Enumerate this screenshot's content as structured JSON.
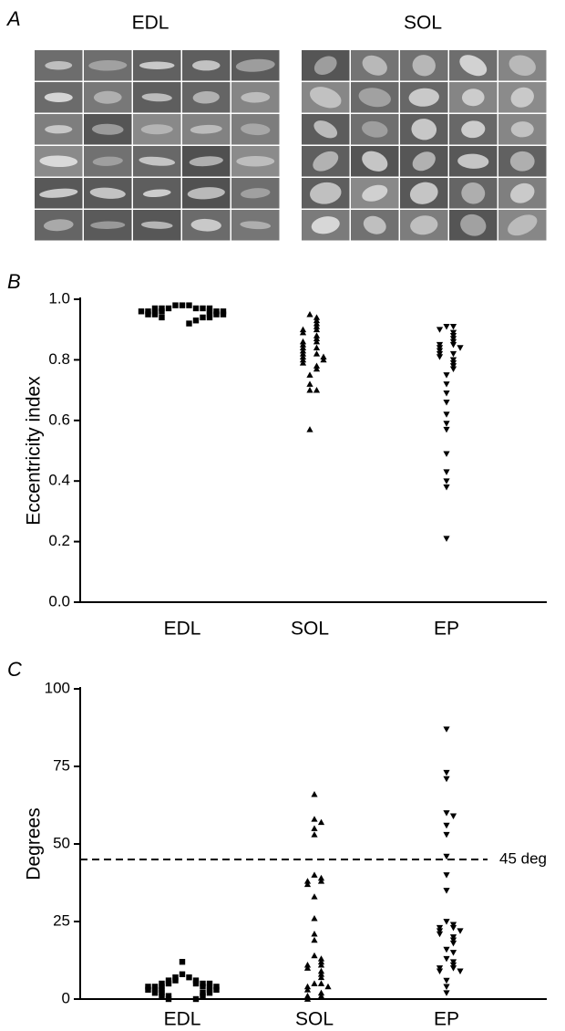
{
  "panel_a": {
    "label": "A",
    "groups": [
      "EDL",
      "SOL"
    ]
  },
  "chart_data": [
    {
      "type": "strip",
      "panel_label": "B",
      "ylabel": "Eccentricity index",
      "categories": [
        "EDL",
        "SOL",
        "EP"
      ],
      "groups": [
        {
          "marker": "square",
          "color": "#000000",
          "values": [
            0.98,
            0.98,
            0.98,
            0.97,
            0.97,
            0.97,
            0.97,
            0.97,
            0.97,
            0.96,
            0.96,
            0.96,
            0.96,
            0.96,
            0.96,
            0.96,
            0.95,
            0.95,
            0.95,
            0.95,
            0.95,
            0.94,
            0.94,
            0.94,
            0.93,
            0.92
          ]
        },
        {
          "marker": "triangle-up",
          "color": "#000000",
          "values": [
            0.95,
            0.94,
            0.93,
            0.92,
            0.91,
            0.9,
            0.9,
            0.89,
            0.88,
            0.87,
            0.86,
            0.86,
            0.85,
            0.84,
            0.84,
            0.83,
            0.82,
            0.82,
            0.81,
            0.81,
            0.8,
            0.8,
            0.79,
            0.78,
            0.77,
            0.75,
            0.72,
            0.7,
            0.7,
            0.57
          ]
        },
        {
          "marker": "triangle-down",
          "color": "#000000",
          "values": [
            0.91,
            0.91,
            0.9,
            0.89,
            0.88,
            0.87,
            0.86,
            0.85,
            0.85,
            0.84,
            0.84,
            0.83,
            0.82,
            0.82,
            0.81,
            0.8,
            0.79,
            0.78,
            0.77,
            0.75,
            0.72,
            0.69,
            0.66,
            0.62,
            0.59,
            0.57,
            0.49,
            0.43,
            0.4,
            0.38,
            0.21
          ]
        }
      ],
      "ylim": [
        0,
        1
      ],
      "yticks": [
        {
          "value": 0,
          "label": "0.0"
        },
        0.2,
        0.4,
        0.6,
        0.8,
        {
          "value": 1,
          "label": "1.0"
        }
      ]
    },
    {
      "type": "strip",
      "panel_label": "C",
      "ylabel": "Degrees",
      "categories": [
        "EDL",
        "SOL",
        "EP"
      ],
      "groups": [
        {
          "marker": "square",
          "color": "#000000",
          "values": [
            12,
            8,
            7,
            7,
            6,
            6,
            6,
            5,
            5,
            5,
            5,
            5,
            4,
            4,
            4,
            4,
            4,
            4,
            3,
            3,
            3,
            3,
            3,
            2,
            2,
            2,
            2,
            1,
            1,
            1,
            0,
            0
          ]
        },
        {
          "marker": "triangle-up",
          "color": "#000000",
          "values": [
            66,
            58,
            57,
            55,
            53,
            40,
            39,
            38,
            38,
            37,
            33,
            26,
            21,
            19,
            14,
            13,
            12,
            11,
            11,
            10,
            9,
            8,
            7,
            5,
            5,
            4,
            4,
            3,
            2,
            1,
            1,
            0
          ]
        },
        {
          "marker": "triangle-down",
          "color": "#000000",
          "values": [
            87,
            73,
            71,
            60,
            59,
            56,
            53,
            46,
            40,
            35,
            25,
            24,
            23,
            23,
            22,
            22,
            21,
            20,
            19,
            18,
            16,
            15,
            13,
            12,
            11,
            10,
            10,
            9,
            9,
            6,
            4,
            2
          ]
        }
      ],
      "ylim": [
        0,
        100
      ],
      "yticks": [
        0,
        25,
        50,
        75,
        100
      ],
      "reference_line": {
        "value": 45,
        "label": "45 deg"
      }
    }
  ]
}
